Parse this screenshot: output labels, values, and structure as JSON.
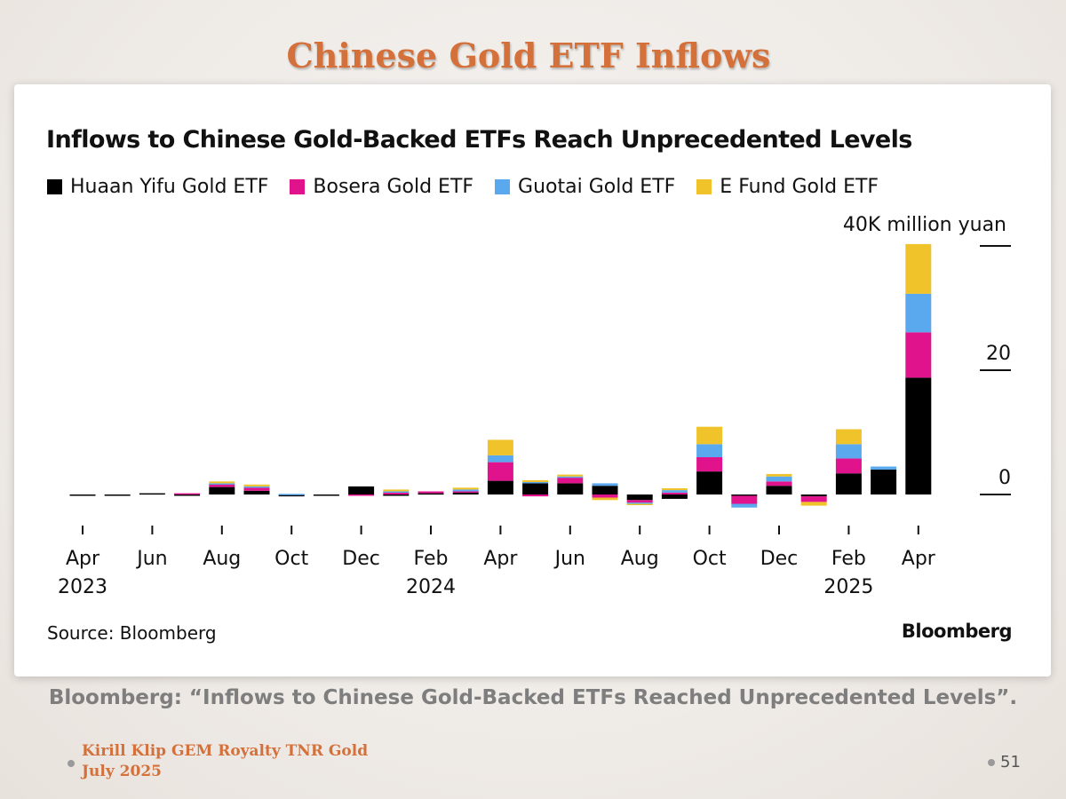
{
  "slide": {
    "title": "Chinese Gold ETF Inflows",
    "caption": "Bloomberg: “Inflows to Chinese Gold-Backed ETFs Reached Unprecedented Levels”.",
    "author": "Kirill Klip GEM Royalty TNR Gold",
    "date": "July 2025",
    "page_number": "51"
  },
  "chart_data": {
    "type": "bar",
    "stacked": true,
    "title": "Inflows to Chinese Gold-Backed ETFs Reach Unprecedented Levels",
    "unit_label": "40K million yuan",
    "ylim": [
      -3,
      40
    ],
    "y_ticks": [
      {
        "value": 40,
        "label": ""
      },
      {
        "value": 20,
        "label": "20"
      },
      {
        "value": 0,
        "label": "0"
      }
    ],
    "categories": [
      "2023-04",
      "2023-05",
      "2023-06",
      "2023-07",
      "2023-08",
      "2023-09",
      "2023-10",
      "2023-11",
      "2023-12",
      "2024-01",
      "2024-02",
      "2024-03",
      "2024-04",
      "2024-05",
      "2024-06",
      "2024-07",
      "2024-08",
      "2024-09",
      "2024-10",
      "2024-11",
      "2024-12",
      "2025-01",
      "2025-02",
      "2025-03",
      "2025-04"
    ],
    "x_tick_labels": [
      {
        "index": 0,
        "line1": "Apr",
        "line2": "2023"
      },
      {
        "index": 2,
        "line1": "Jun",
        "line2": ""
      },
      {
        "index": 4,
        "line1": "Aug",
        "line2": ""
      },
      {
        "index": 6,
        "line1": "Oct",
        "line2": ""
      },
      {
        "index": 8,
        "line1": "Dec",
        "line2": ""
      },
      {
        "index": 10,
        "line1": "Feb",
        "line2": "2024"
      },
      {
        "index": 12,
        "line1": "Apr",
        "line2": ""
      },
      {
        "index": 14,
        "line1": "Jun",
        "line2": ""
      },
      {
        "index": 16,
        "line1": "Aug",
        "line2": ""
      },
      {
        "index": 18,
        "line1": "Oct",
        "line2": ""
      },
      {
        "index": 20,
        "line1": "Dec",
        "line2": ""
      },
      {
        "index": 22,
        "line1": "Feb",
        "line2": "2025"
      },
      {
        "index": 24,
        "line1": "Apr",
        "line2": ""
      }
    ],
    "series": [
      {
        "name": "Huaan Yifu Gold ETF",
        "color": "#000000",
        "values": [
          -0.1,
          -0.1,
          0.2,
          -0.1,
          1.2,
          0.6,
          -0.3,
          -0.1,
          1.3,
          -0.2,
          0.2,
          0.3,
          2.2,
          1.8,
          1.8,
          1.4,
          -0.9,
          -0.7,
          3.7,
          -0.2,
          1.4,
          -0.3,
          3.4,
          4.0,
          18.8
        ]
      },
      {
        "name": "Bosera Gold ETF",
        "color": "#e0138c",
        "values": [
          0,
          0,
          0,
          0.2,
          0.5,
          0.5,
          0,
          0,
          -0.1,
          0.3,
          0.3,
          0.2,
          3.0,
          -0.3,
          0.9,
          -0.5,
          -0.4,
          0.3,
          2.3,
          -1.3,
          0.7,
          -0.9,
          2.4,
          0,
          7.3
        ]
      },
      {
        "name": "Guotai Gold ETF",
        "color": "#5aa9ee",
        "values": [
          0,
          0,
          0,
          0,
          0.1,
          0.2,
          0.1,
          0,
          0,
          0.2,
          0,
          0.3,
          1.1,
          0.2,
          0.2,
          0.4,
          -0.2,
          0.4,
          2.1,
          -0.6,
          0.8,
          0,
          2.3,
          0.5,
          6.2
        ]
      },
      {
        "name": "E Fund Gold ETF",
        "color": "#f0c32a",
        "values": [
          0,
          0,
          0,
          0,
          0.3,
          0.3,
          0,
          0,
          0,
          0.3,
          0,
          0.3,
          2.5,
          0.3,
          0.3,
          -0.4,
          -0.2,
          0.3,
          2.8,
          0,
          0.4,
          -0.6,
          2.4,
          0,
          8.0
        ]
      }
    ],
    "source": "Source: Bloomberg",
    "brand": "Bloomberg",
    "grid": false,
    "legend_position": "top"
  }
}
